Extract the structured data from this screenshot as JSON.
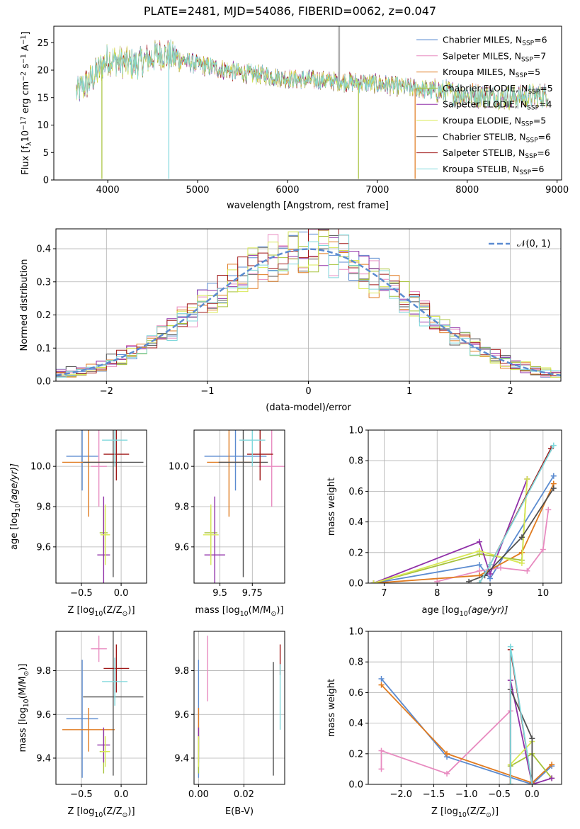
{
  "figure": {
    "title": "PLATE=2481, MJD=54086, FIBERID=0062, z=0.047"
  },
  "legend_entries": [
    {
      "label": "Chabrier MILES, N",
      "sub": "SSP",
      "tail": "=6",
      "color": "#5b8bd0"
    },
    {
      "label": "Salpeter MILES, N",
      "sub": "SSP",
      "tail": "=7",
      "color": "#e88bc0"
    },
    {
      "label": "Kroupa MILES, N",
      "sub": "SSP",
      "tail": "=5",
      "color": "#e07b20"
    },
    {
      "label": "Chabrier ELODIE, N",
      "sub": "SSP",
      "tail": "=5",
      "color": "#a6c23a"
    },
    {
      "label": "Salpeter ELODIE, N",
      "sub": "SSP",
      "tail": "=4",
      "color": "#9030a8"
    },
    {
      "label": "Kroupa ELODIE, N",
      "sub": "SSP",
      "tail": "=5",
      "color": "#d8e856"
    },
    {
      "label": "Chabrier STELIB, N",
      "sub": "SSP",
      "tail": "=6",
      "color": "#505050"
    },
    {
      "label": "Salpeter STELIB, N",
      "sub": "SSP",
      "tail": "=6",
      "color": "#a01818"
    },
    {
      "label": "Kroupa STELIB, N",
      "sub": "SSP",
      "tail": "=6",
      "color": "#80d8dc"
    }
  ],
  "chart_data": [
    {
      "id": "spectrum",
      "type": "line",
      "xlabel": "wavelength [Angstrom, rest frame]",
      "ylabel_parts": [
        "Flux [f",
        "λ",
        "10",
        "−17",
        " erg cm",
        "−2",
        " s",
        "−1",
        " A",
        "−1",
        "]"
      ],
      "xlim": [
        3400,
        9050
      ],
      "ylim": [
        0,
        28
      ],
      "xticks": [
        4000,
        5000,
        6000,
        7000,
        8000,
        9000
      ],
      "yticks": [
        0,
        5,
        10,
        15,
        20,
        25
      ],
      "grid": false,
      "legend_position": "top-right",
      "curve_anchors": {
        "x": [
          3650,
          3800,
          4000,
          4300,
          4600,
          5000,
          5500,
          6000,
          6500,
          7000,
          7500,
          8000,
          8500,
          8900
        ],
        "y": [
          16,
          18,
          22,
          21,
          23,
          21,
          19.5,
          18.5,
          18,
          17.5,
          16.5,
          15.5,
          15,
          15.5
        ]
      },
      "dips": [
        {
          "x": 3935,
          "y": 0.2,
          "series": 3
        },
        {
          "x": 4680,
          "y": 0.2,
          "series": 8
        },
        {
          "x": 6790,
          "y": 0.2,
          "series": 3
        },
        {
          "x": 7420,
          "y": 0.2,
          "series": 2
        }
      ],
      "spikes": [
        {
          "x": 6565,
          "y": 28
        },
        {
          "x": 6580,
          "y": 28
        }
      ]
    },
    {
      "id": "residual-histogram",
      "type": "bar",
      "xlabel": "(data-model)/error",
      "ylabel": "Normed distribution",
      "xlim": [
        -2.5,
        2.5
      ],
      "ylim": [
        0,
        0.46
      ],
      "xticks": [
        -2,
        -1,
        0,
        1,
        2
      ],
      "yticks": [
        0,
        0.1,
        0.2,
        0.3,
        0.4
      ],
      "grid": true,
      "legend_position": "top-right",
      "reference_curve": {
        "name": "𝒩(0, 1)",
        "mean": 0,
        "sigma": 1,
        "color": "#5b8bd0"
      },
      "bin_width": 0.1
    },
    {
      "id": "z-vs-age",
      "type": "scatter",
      "xlabel_parts": [
        "Z [log",
        "10",
        "(Z/Z",
        "⊙",
        ")]"
      ],
      "ylabel_parts": [
        "age  [log",
        "10",
        "(age/yr)]"
      ],
      "xlim": [
        -0.82,
        0.32
      ],
      "ylim": [
        9.42,
        10.18
      ],
      "xticks": [
        -0.5,
        0.0
      ],
      "yticks": [
        9.6,
        9.8,
        10.0
      ],
      "grid": true,
      "points": [
        {
          "series": 0,
          "x": -0.49,
          "xerr": 0.2,
          "y": 10.05,
          "yerr": 0.17
        },
        {
          "series": 1,
          "x": -0.28,
          "xerr": 0.1,
          "y": 10.0,
          "yerr": 0.2
        },
        {
          "series": 2,
          "x": -0.41,
          "xerr": 0.33,
          "y": 10.02,
          "yerr": 0.27
        },
        {
          "series": 3,
          "x": -0.22,
          "xerr": 0.05,
          "y": 9.67,
          "yerr": 0.12
        },
        {
          "series": 4,
          "x": -0.22,
          "xerr": 0.08,
          "y": 9.56,
          "yerr": 0.29
        },
        {
          "series": 5,
          "x": -0.2,
          "xerr": 0.06,
          "y": 9.66,
          "yerr": 0.15
        },
        {
          "series": 6,
          "x": -0.1,
          "xerr": 0.38,
          "y": 10.02,
          "yerr": 0.57
        },
        {
          "series": 7,
          "x": -0.06,
          "xerr": 0.16,
          "y": 10.06,
          "yerr": 0.13
        },
        {
          "series": 8,
          "x": -0.08,
          "xerr": 0.16,
          "y": 10.13,
          "yerr": 0.13
        }
      ]
    },
    {
      "id": "mass-vs-age",
      "type": "scatter",
      "xlabel_parts": [
        "mass [log",
        "10",
        "(M/M",
        "⊙",
        ")]"
      ],
      "ylabel": "",
      "xlim": [
        9.3,
        10.0
      ],
      "ylim": [
        9.42,
        10.18
      ],
      "xticks": [
        9.5,
        9.75
      ],
      "yticks": [
        9.6,
        9.8,
        10.0
      ],
      "grid": true,
      "points": [
        {
          "series": 0,
          "x": 9.62,
          "xerr": 0.24,
          "y": 10.05,
          "yerr": 0.17
        },
        {
          "series": 1,
          "x": 9.9,
          "xerr": 0.1,
          "y": 10.0,
          "yerr": 0.2
        },
        {
          "series": 2,
          "x": 9.57,
          "xerr": 0.17,
          "y": 10.02,
          "yerr": 0.27
        },
        {
          "series": 3,
          "x": 9.43,
          "xerr": 0.05,
          "y": 9.67,
          "yerr": 0.12
        },
        {
          "series": 4,
          "x": 9.46,
          "xerr": 0.08,
          "y": 9.56,
          "yerr": 0.29
        },
        {
          "series": 5,
          "x": 9.43,
          "xerr": 0.06,
          "y": 9.66,
          "yerr": 0.15
        },
        {
          "series": 6,
          "x": 9.68,
          "xerr": 0.19,
          "y": 10.02,
          "yerr": 0.57
        },
        {
          "series": 7,
          "x": 9.81,
          "xerr": 0.1,
          "y": 10.06,
          "yerr": 0.13
        },
        {
          "series": 8,
          "x": 9.75,
          "xerr": 0.1,
          "y": 10.13,
          "yerr": 0.13
        }
      ]
    },
    {
      "id": "age-vs-massweight",
      "type": "line",
      "xlabel_parts": [
        "age  [log",
        "10",
        "(age/yr)]"
      ],
      "ylabel": "mass weight",
      "xlim": [
        6.7,
        10.35
      ],
      "ylim": [
        0,
        1.0
      ],
      "xticks": [
        7,
        8,
        9,
        10
      ],
      "yticks": [
        0.0,
        0.2,
        0.4,
        0.6,
        0.8,
        1.0
      ],
      "grid": true,
      "series": [
        {
          "series": 0,
          "x": [
            6.8,
            8.8,
            9.0,
            10.2
          ],
          "y": [
            0.0,
            0.12,
            0.03,
            0.7
          ]
        },
        {
          "series": 1,
          "x": [
            8.0,
            8.8,
            9.2,
            9.7,
            10.0,
            10.1
          ],
          "y": [
            0.01,
            0.08,
            0.1,
            0.08,
            0.22,
            0.48
          ]
        },
        {
          "series": 2,
          "x": [
            6.8,
            8.8,
            9.6,
            10.2
          ],
          "y": [
            0.0,
            0.05,
            0.2,
            0.65
          ]
        },
        {
          "series": 3,
          "x": [
            6.8,
            8.8,
            9.6,
            9.7
          ],
          "y": [
            0.0,
            0.19,
            0.15,
            0.68
          ]
        },
        {
          "series": 4,
          "x": [
            6.8,
            8.8,
            9.0,
            9.7
          ],
          "y": [
            0.0,
            0.27,
            0.06,
            0.68
          ]
        },
        {
          "series": 5,
          "x": [
            6.8,
            8.8,
            9.6,
            9.7
          ],
          "y": [
            0.0,
            0.21,
            0.13,
            0.68
          ]
        },
        {
          "series": 6,
          "x": [
            8.6,
            8.9,
            9.6,
            10.2
          ],
          "y": [
            0.01,
            0.05,
            0.3,
            0.62
          ]
        },
        {
          "series": 7,
          "x": [
            8.8,
            9.0,
            10.15
          ],
          "y": [
            0.0,
            0.12,
            0.88
          ]
        },
        {
          "series": 8,
          "x": [
            8.8,
            9.0,
            10.2
          ],
          "y": [
            0.0,
            0.12,
            0.9
          ]
        }
      ]
    },
    {
      "id": "z-vs-mass",
      "type": "scatter",
      "xlabel_parts": [
        "Z [log",
        "10",
        "(Z/Z",
        "⊙",
        ")]"
      ],
      "ylabel_parts": [
        "mass [log",
        "10",
        "(M/M",
        "⊙",
        ")]"
      ],
      "xlim": [
        -0.82,
        0.32
      ],
      "ylim": [
        9.28,
        9.98
      ],
      "xticks": [
        -0.5,
        0.0
      ],
      "yticks": [
        9.4,
        9.6,
        9.8
      ],
      "grid": true,
      "points": [
        {
          "series": 0,
          "x": -0.49,
          "xerr": 0.2,
          "y": 9.58,
          "yerr": 0.27
        },
        {
          "series": 1,
          "x": -0.28,
          "xerr": 0.1,
          "y": 9.9,
          "yerr": 0.06
        },
        {
          "series": 2,
          "x": -0.41,
          "xerr": 0.33,
          "y": 9.53,
          "yerr": 0.1
        },
        {
          "series": 3,
          "x": -0.22,
          "xerr": 0.05,
          "y": 9.43,
          "yerr": 0.1
        },
        {
          "series": 4,
          "x": -0.22,
          "xerr": 0.08,
          "y": 9.46,
          "yerr": 0.08
        },
        {
          "series": 5,
          "x": -0.2,
          "xerr": 0.06,
          "y": 9.43,
          "yerr": 0.07
        },
        {
          "series": 6,
          "x": -0.1,
          "xerr": 0.38,
          "y": 9.68,
          "yerr": 0.36
        },
        {
          "series": 7,
          "x": -0.06,
          "xerr": 0.16,
          "y": 9.81,
          "yerr": 0.11
        },
        {
          "series": 8,
          "x": -0.08,
          "xerr": 0.16,
          "y": 9.75,
          "yerr": 0.11
        }
      ]
    },
    {
      "id": "ebv-vs-mass",
      "type": "scatter",
      "xlabel": "E(B-V)",
      "ylabel": "",
      "xlim": [
        -0.002,
        0.038
      ],
      "ylim": [
        9.28,
        9.98
      ],
      "xticks": [
        0.0,
        0.02
      ],
      "yticks": [
        9.4,
        9.6,
        9.8
      ],
      "grid": true,
      "points": [
        {
          "series": 0,
          "x": 0.0,
          "y": 9.58,
          "yerr": 0.27
        },
        {
          "series": 1,
          "x": 0.004,
          "y": 9.81,
          "yerr": 0.15
        },
        {
          "series": 2,
          "x": 0.0,
          "y": 9.53,
          "yerr": 0.1
        },
        {
          "series": 3,
          "x": 0.0,
          "y": 9.43,
          "yerr": 0.1
        },
        {
          "series": 4,
          "x": 0.0,
          "y": 9.46,
          "yerr": 0.08
        },
        {
          "series": 5,
          "x": 0.0,
          "y": 9.43,
          "yerr": 0.07
        },
        {
          "series": 6,
          "x": 0.033,
          "y": 9.58,
          "yerr": 0.26
        },
        {
          "series": 7,
          "x": 0.036,
          "y": 9.85,
          "yerr": 0.07
        },
        {
          "series": 8,
          "x": 0.036,
          "y": 9.68,
          "yerr": 0.15
        }
      ]
    },
    {
      "id": "z-vs-massweight",
      "type": "line",
      "xlabel_parts": [
        "Z [log",
        "10",
        "(Z/Z",
        "⊙",
        ")]"
      ],
      "ylabel": "mass weight",
      "xlim": [
        -2.5,
        0.45
      ],
      "ylim": [
        0,
        1.0
      ],
      "xticks": [
        -2.0,
        -1.5,
        -1.0,
        -0.5,
        0.0
      ],
      "yticks": [
        0.0,
        0.2,
        0.4,
        0.6,
        0.8,
        1.0
      ],
      "grid": true,
      "series": [
        {
          "series": 0,
          "x": [
            -2.3,
            -1.3,
            0.0,
            0.3
          ],
          "y": [
            0.69,
            0.18,
            0.0,
            0.12
          ]
        },
        {
          "series": 1,
          "x": [
            -2.3,
            -2.3,
            -1.3,
            -0.33
          ],
          "y": [
            0.1,
            0.22,
            0.07,
            0.48
          ]
        },
        {
          "series": 2,
          "x": [
            -2.3,
            -1.3,
            0.0,
            0.3
          ],
          "y": [
            0.65,
            0.2,
            0.01,
            0.13
          ]
        },
        {
          "series": 3,
          "x": [
            -0.33,
            -0.33,
            0.0,
            0.3
          ],
          "y": [
            0.0,
            0.12,
            0.2,
            0.04
          ]
        },
        {
          "series": 4,
          "x": [
            -0.33,
            -0.33,
            0.0,
            0.3
          ],
          "y": [
            0.0,
            0.68,
            0.0,
            0.04
          ]
        },
        {
          "series": 5,
          "x": [
            -0.33,
            -0.33,
            0.0
          ],
          "y": [
            0.0,
            0.13,
            0.28
          ]
        },
        {
          "series": 6,
          "x": [
            -0.33,
            -0.33,
            0.0,
            0.0
          ],
          "y": [
            0.0,
            0.62,
            0.3,
            0.0
          ]
        },
        {
          "series": 7,
          "x": [
            -0.33,
            -0.33,
            0.0
          ],
          "y": [
            0.0,
            0.88,
            0.0
          ]
        },
        {
          "series": 8,
          "x": [
            -0.33,
            -0.33,
            0.0
          ],
          "y": [
            0.0,
            0.9,
            0.0
          ]
        }
      ]
    }
  ]
}
